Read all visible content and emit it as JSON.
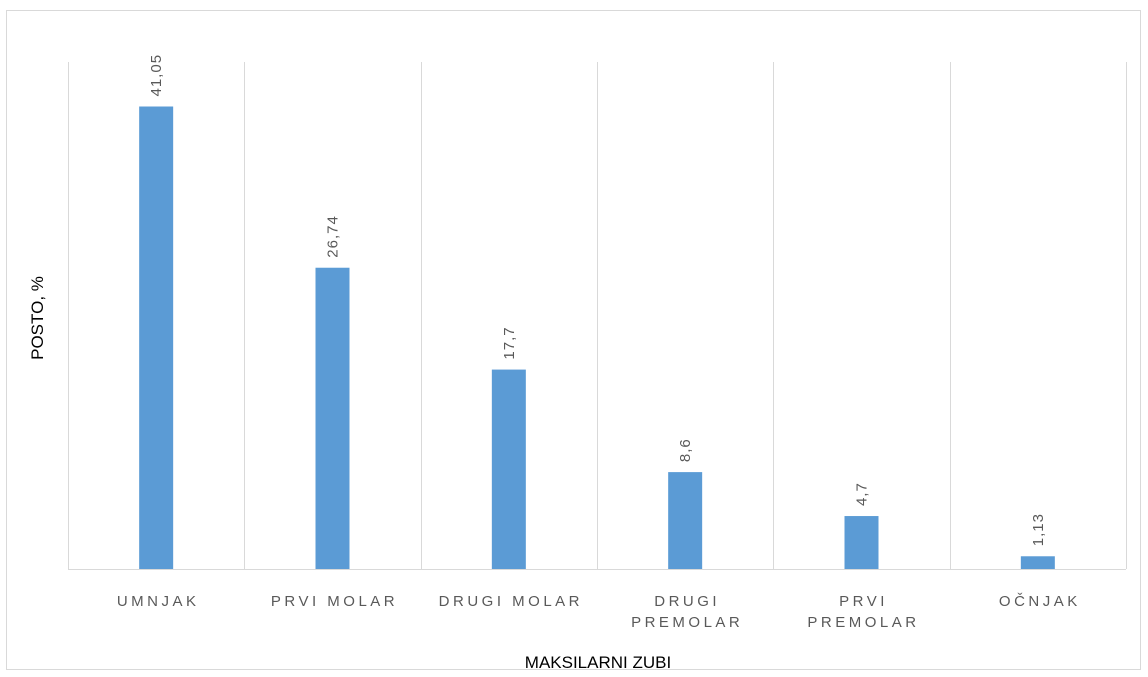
{
  "chart_data": {
    "type": "bar",
    "categories": [
      [
        "UMNJAK"
      ],
      [
        "PRVI MOLAR"
      ],
      [
        "DRUGI MOLAR"
      ],
      [
        "DRUGI",
        "PREMOLAR"
      ],
      [
        "PRVI",
        "PREMOLAR"
      ],
      [
        "OČNJAK"
      ]
    ],
    "values": [
      41.05,
      26.74,
      17.7,
      8.6,
      4.7,
      1.13
    ],
    "data_labels": [
      "41,05",
      "26,74",
      "17,7",
      "8,6",
      "4,7",
      "1,13"
    ],
    "xlabel": "MAKSILARNI ZUBI",
    "ylabel": "POSTO, %",
    "ylim": [
      0,
      45
    ],
    "grid": "vertical category separators",
    "legend": "none",
    "bar_color": "#5b9bd5",
    "grid_color": "#d9d9d9"
  }
}
